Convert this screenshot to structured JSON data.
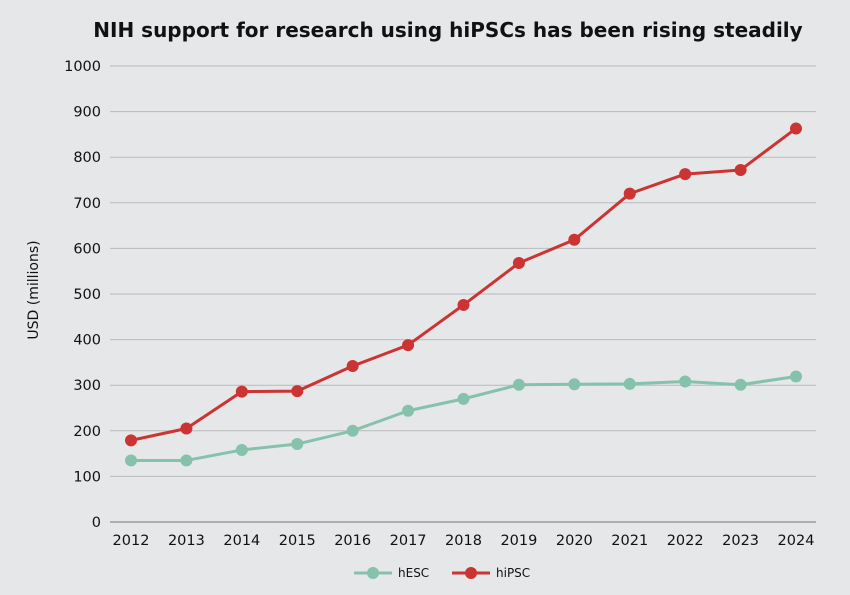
{
  "chart_data": {
    "type": "line",
    "title": "NIH support for research using hiPSCs has been rising steadily",
    "xlabel": "",
    "ylabel": "USD (millions)",
    "x": [
      "2012",
      "2013",
      "2014",
      "2015",
      "2016",
      "2017",
      "2018",
      "2019",
      "2020",
      "2021",
      "2022",
      "2023",
      "2024"
    ],
    "ylim": [
      0,
      1000
    ],
    "yticks": [
      "0",
      "100",
      "200",
      "300",
      "400",
      "500",
      "600",
      "700",
      "800",
      "900",
      "1000"
    ],
    "grid": true,
    "legend_position": "bottom-center",
    "series": [
      {
        "name": "hESC",
        "color": "#86c2ab",
        "values": [
          135,
          135,
          158,
          171,
          200,
          244,
          270,
          301,
          302,
          303,
          308,
          301,
          319
        ]
      },
      {
        "name": "hiPSC",
        "color": "#cc3333",
        "values": [
          179,
          205,
          286,
          287,
          342,
          388,
          476,
          568,
          619,
          720,
          763,
          772,
          863
        ]
      }
    ]
  }
}
